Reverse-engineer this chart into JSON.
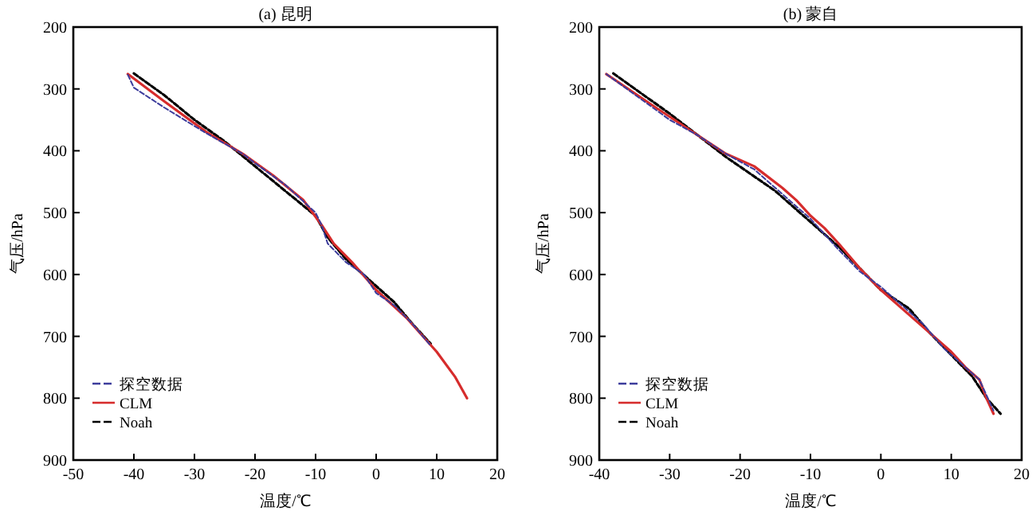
{
  "chart_data": [
    {
      "type": "line",
      "title": "(a) 昆明",
      "xlabel": "温度/℃",
      "ylabel": "气压/hPa",
      "xlim": [
        -50,
        20
      ],
      "xticks": [
        -50,
        -40,
        -30,
        -20,
        -10,
        0,
        10,
        20
      ],
      "ylim": [
        900,
        200
      ],
      "yticks": [
        200,
        300,
        400,
        500,
        600,
        700,
        800,
        900
      ],
      "legend": "bottom left",
      "series": [
        {
          "name": "探空数据",
          "color": "#3c3c9c",
          "line_style": "dashed",
          "x": [
            -41,
            -40,
            -35,
            -28,
            -22,
            -20,
            -15,
            -10,
            -9,
            -8,
            -5,
            -2,
            0,
            3,
            6,
            9
          ],
          "values": [
            277,
            298,
            330,
            372,
            405,
            420,
            455,
            500,
            520,
            550,
            580,
            600,
            630,
            650,
            680,
            715
          ]
        },
        {
          "name": "CLM",
          "color": "#d62c2c",
          "line_style": "solid",
          "x": [
            -41,
            -35,
            -28,
            -22,
            -17,
            -12,
            -9,
            -7,
            -4,
            0,
            5,
            10,
            13,
            15
          ],
          "values": [
            276,
            320,
            370,
            405,
            440,
            480,
            520,
            550,
            580,
            625,
            670,
            725,
            765,
            800
          ]
        },
        {
          "name": "Noah",
          "color": "#000000",
          "line_style": "dashed",
          "x": [
            -40,
            -35,
            -30,
            -25,
            -20,
            -15,
            -10,
            -8,
            -5,
            -1,
            3,
            6,
            9
          ],
          "values": [
            275,
            310,
            350,
            385,
            425,
            465,
            505,
            540,
            575,
            610,
            645,
            680,
            712
          ]
        }
      ]
    },
    {
      "type": "line",
      "title": "(b) 蒙自",
      "xlabel": "温度/℃",
      "ylabel": "气压/hPa",
      "xlim": [
        -40,
        20
      ],
      "xticks": [
        -40,
        -30,
        -20,
        -10,
        0,
        10,
        20
      ],
      "ylim": [
        900,
        200
      ],
      "yticks": [
        200,
        300,
        400,
        500,
        600,
        700,
        800,
        900
      ],
      "legend": "bottom left",
      "series": [
        {
          "name": "探空数据",
          "color": "#3c3c9c",
          "line_style": "dashed",
          "x": [
            -39,
            -30,
            -26,
            -22,
            -18,
            -14,
            -10,
            -6,
            -3,
            0,
            3,
            6,
            9,
            11,
            14,
            16
          ],
          "values": [
            276,
            350,
            375,
            405,
            430,
            470,
            510,
            560,
            595,
            620,
            650,
            680,
            720,
            740,
            770,
            820
          ]
        },
        {
          "name": "CLM",
          "color": "#d62c2c",
          "line_style": "solid",
          "x": [
            -39,
            -32,
            -26,
            -22,
            -18,
            -14,
            -12,
            -10,
            -8,
            -6,
            -3,
            0,
            3,
            6,
            10,
            12,
            14,
            15,
            16
          ],
          "values": [
            276,
            330,
            375,
            405,
            425,
            460,
            480,
            505,
            525,
            550,
            590,
            625,
            655,
            685,
            725,
            750,
            770,
            800,
            825
          ]
        },
        {
          "name": "Noah",
          "color": "#000000",
          "line_style": "dashed",
          "x": [
            -38,
            -30,
            -22,
            -15,
            -10,
            -6,
            -3,
            0,
            4,
            7,
            10,
            13,
            15,
            17
          ],
          "values": [
            275,
            340,
            410,
            465,
            515,
            555,
            590,
            625,
            655,
            695,
            730,
            765,
            800,
            825
          ]
        }
      ]
    }
  ]
}
